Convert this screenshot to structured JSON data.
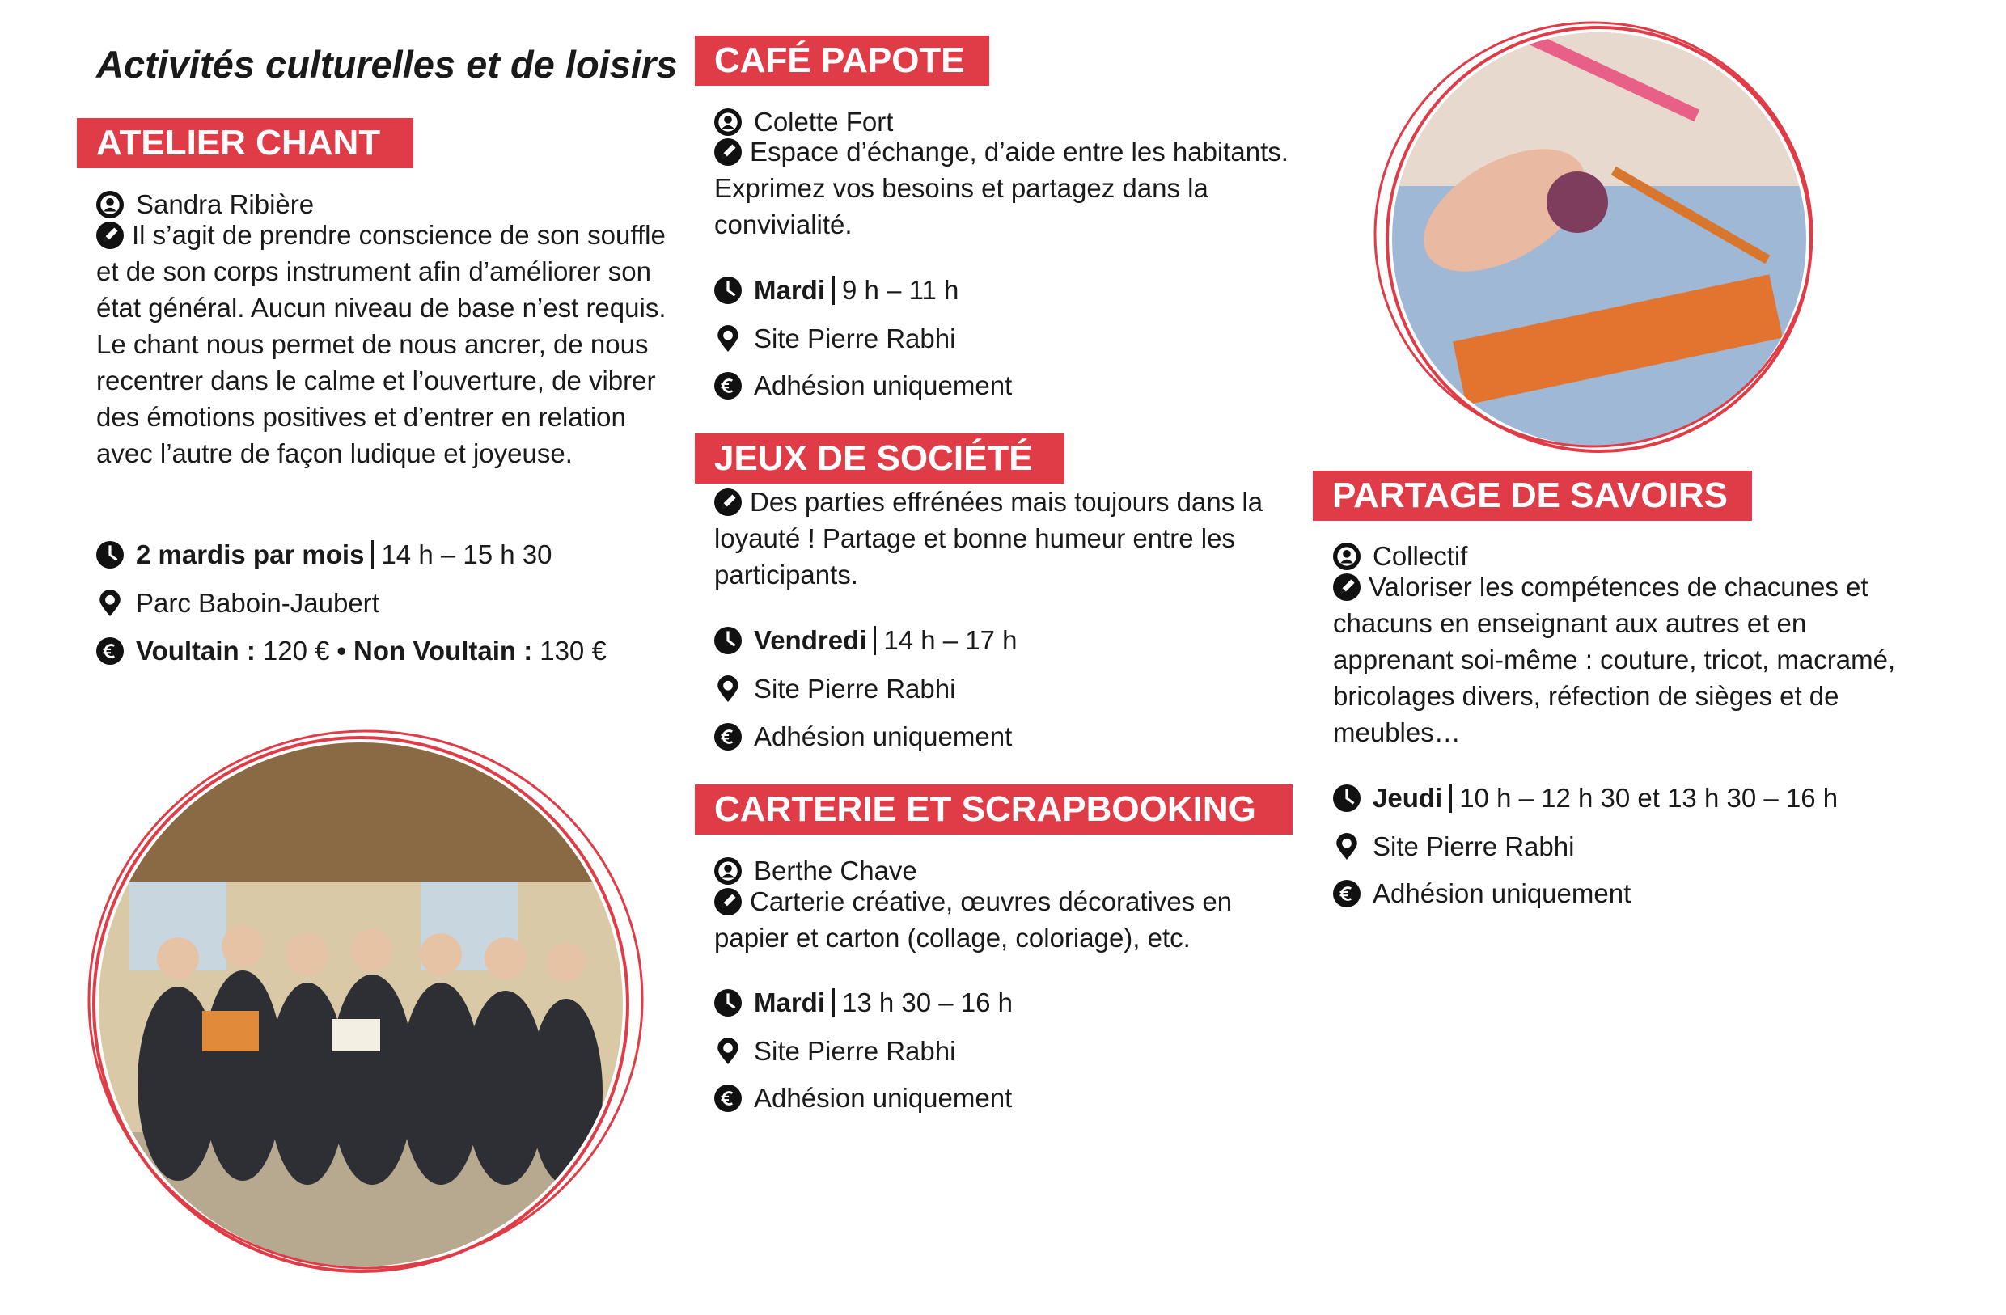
{
  "header": {
    "title": "Activités culturelles et de loisirs"
  },
  "sections": [
    {
      "title": "ATELIER CHANT",
      "person": "Sandra Ribière",
      "description": "Il s’agit de prendre conscience de son souffle et de son corps instrument afin d’améliorer son état général. Aucun niveau de base n’est requis. Le chant nous permet de nous ancrer, de nous recentrer dans le calme et l’ouverture, de vibrer des émotions positives et d’entrer en relation avec l’autre de façon ludique et joyeuse.",
      "schedule": {
        "day": "2 mardis par mois",
        "time": "14 h – 15 h 30"
      },
      "location": "Parc Baboin-Jaubert",
      "price": {
        "label_1": "Voultain :",
        "amount_1": "120 €",
        "separator": "•",
        "label_2": "Non Voultain :",
        "amount_2": "130 €"
      }
    },
    {
      "title": "CAFÉ PAPOTE",
      "person": "Colette Fort",
      "description": "Espace d’échange, d’aide entre les habitants. Exprimez vos besoins et partagez dans la convivialité.",
      "schedule": {
        "day": "Mardi",
        "time": "9 h – 11 h"
      },
      "location": "Site Pierre Rabhi",
      "price": "Adhésion uniquement"
    },
    {
      "title": "JEUX DE SOCIÉTÉ",
      "description": "Des parties effrénées mais toujours dans la loyauté ! Partage et bonne humeur entre les participants.",
      "schedule": {
        "day": "Vendredi",
        "time": "14 h – 17 h"
      },
      "location": "Site Pierre Rabhi",
      "price": "Adhésion uniquement"
    },
    {
      "title": "CARTERIE ET SCRAPBOOKING",
      "person": "Berthe Chave",
      "description": "Carterie créative, œuvres décoratives en papier et carton (collage, coloriage), etc.",
      "schedule": {
        "day": "Mardi",
        "time": "13 h 30 – 16 h"
      },
      "location": "Site Pierre Rabhi",
      "price": "Adhésion uniquement"
    },
    {
      "title": "PARTAGE DE SAVOIRS",
      "person": "Collectif",
      "description": "Valoriser les compétences de chacunes et chacuns en enseignant aux autres et en apprenant soi-même : couture, tricot, macramé, bricolages divers, réfection de sièges et de meubles…",
      "schedule": {
        "day": "Jeudi",
        "time": "10 h – 12 h 30 et 13 h 30 – 16 h"
      },
      "location": "Site Pierre Rabhi",
      "price": "Adhésion uniquement"
    }
  ]
}
